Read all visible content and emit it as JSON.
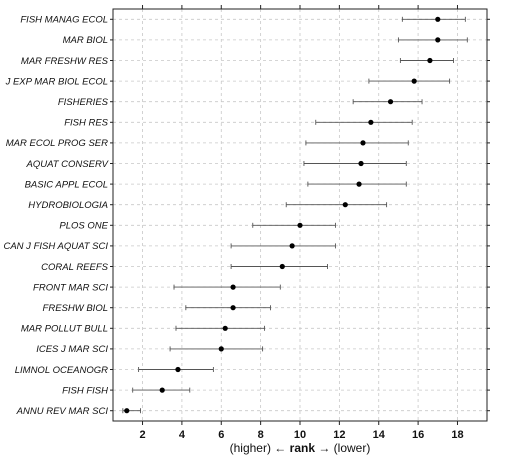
{
  "chart_data": {
    "type": "dot-interval",
    "xlabel": {
      "pre": "(higher) ← ",
      "bold": "rank",
      "post": " → (lower)"
    },
    "xlim": [
      0.5,
      19.5
    ],
    "xticks": [
      2,
      4,
      6,
      8,
      10,
      12,
      14,
      16,
      18
    ],
    "grid": true,
    "categories": [
      "FISH MANAG ECOL",
      "MAR BIOL",
      "MAR FRESHW RES",
      "J EXP MAR BIOL ECOL",
      "FISHERIES",
      "FISH RES",
      "MAR ECOL PROG SER",
      "AQUAT CONSERV",
      "BASIC APPL ECOL",
      "HYDROBIOLOGIA",
      "PLOS ONE",
      "CAN J FISH AQUAT SCI",
      "CORAL REEFS",
      "FRONT MAR SCI",
      "FRESHW BIOL",
      "MAR POLLUT BULL",
      "ICES J MAR SCI",
      "LIMNOL OCEANOGR",
      "FISH FISH",
      "ANNU REV MAR SCI"
    ],
    "values": [
      17.0,
      17.0,
      16.6,
      15.8,
      14.6,
      13.6,
      13.2,
      13.1,
      13.0,
      12.3,
      10.0,
      9.6,
      9.1,
      6.6,
      6.6,
      6.2,
      6.0,
      3.8,
      3.0,
      1.2
    ],
    "lower": [
      15.2,
      15.0,
      15.1,
      13.5,
      12.7,
      10.8,
      10.3,
      10.2,
      10.4,
      9.3,
      7.6,
      6.5,
      6.5,
      3.6,
      4.2,
      3.7,
      3.4,
      1.8,
      1.5,
      1.0
    ],
    "upper": [
      18.4,
      18.5,
      17.8,
      17.6,
      16.2,
      15.7,
      15.5,
      15.4,
      15.4,
      14.4,
      11.8,
      11.8,
      11.4,
      9.0,
      8.5,
      8.2,
      8.1,
      5.6,
      4.4,
      1.9
    ]
  }
}
